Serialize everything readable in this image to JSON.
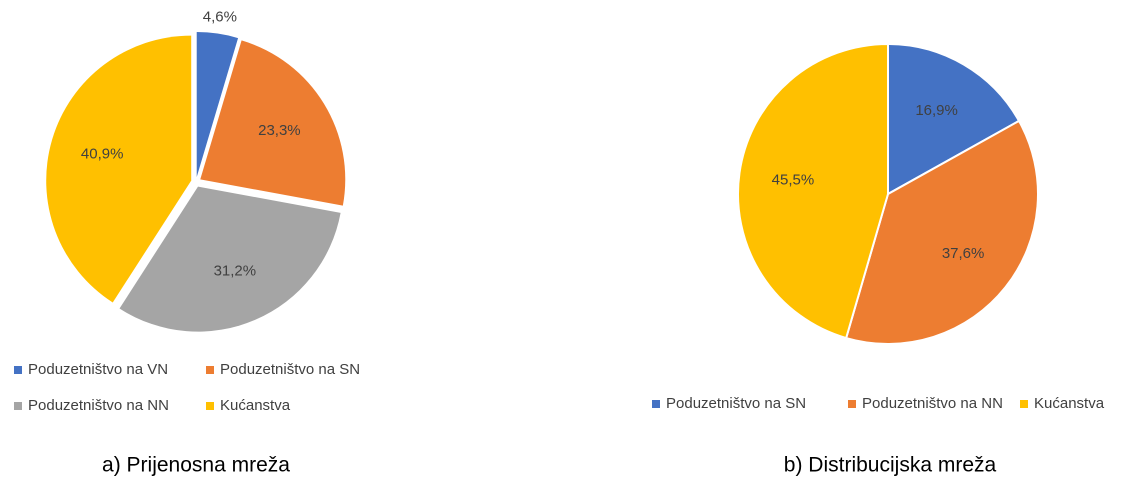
{
  "chart_data": [
    {
      "type": "pie",
      "caption": "a) Prijenosna mreža",
      "exploded": true,
      "categories": [
        "Poduzetništvo na VN",
        "Poduzetništvo na SN",
        "Poduzetništvo na NN",
        "Kućanstva"
      ],
      "values": [
        4.6,
        23.3,
        31.2,
        40.9
      ],
      "value_labels": [
        "4,6%",
        "23,3%",
        "31,2%",
        "40,9%"
      ],
      "colors": [
        "#4472c4",
        "#ed7d31",
        "#a5a5a5",
        "#ffc000"
      ]
    },
    {
      "type": "pie",
      "caption": "b) Distribucijska mreža",
      "exploded": false,
      "categories": [
        "Poduzetništvo na SN",
        "Poduzetništvo na NN",
        "Kućanstva"
      ],
      "values": [
        16.9,
        37.6,
        45.5
      ],
      "value_labels": [
        "16,9%",
        "37,6%",
        "45,5%"
      ],
      "colors": [
        "#4472c4",
        "#ed7d31",
        "#ffc000"
      ]
    }
  ]
}
